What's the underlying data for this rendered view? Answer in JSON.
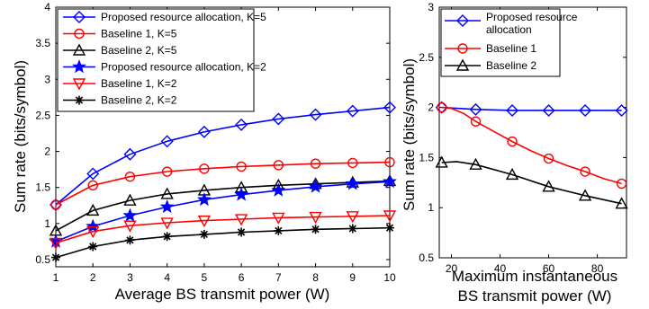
{
  "chart_data": [
    {
      "type": "line",
      "xlabel": "Average BS transmit power (W)",
      "ylabel": "Sum rate (bits/symbol)",
      "xlim": [
        1,
        10
      ],
      "ylim": [
        0.4,
        4
      ],
      "x_ticks": [
        "1",
        "2",
        "3",
        "4",
        "5",
        "6",
        "7",
        "8",
        "9",
        "10"
      ],
      "y_ticks": [
        "0.5",
        "1",
        "1.5",
        "2",
        "2.5",
        "3",
        "3.5",
        "4"
      ],
      "grid": false,
      "legend_position": "top-left",
      "x": [
        1,
        2,
        3,
        4,
        5,
        6,
        7,
        8,
        9,
        10
      ],
      "series": [
        {
          "name": "Proposed resource allocation, K=5",
          "color": "#0000ff",
          "marker": "diamond",
          "values": [
            1.26,
            1.69,
            1.96,
            2.14,
            2.27,
            2.37,
            2.45,
            2.51,
            2.56,
            2.61
          ]
        },
        {
          "name": "Baseline 1, K=5",
          "color": "#ff0000",
          "marker": "circle",
          "values": [
            1.26,
            1.53,
            1.65,
            1.72,
            1.76,
            1.79,
            1.81,
            1.83,
            1.84,
            1.85
          ]
        },
        {
          "name": "Baseline 2, K=5",
          "color": "#000000",
          "marker": "triangle-up",
          "values": [
            0.9,
            1.18,
            1.32,
            1.41,
            1.46,
            1.5,
            1.53,
            1.55,
            1.57,
            1.59
          ]
        },
        {
          "name": "Proposed resource allocation, K=2",
          "color": "#0000ff",
          "marker": "star",
          "values": [
            0.75,
            0.96,
            1.11,
            1.23,
            1.33,
            1.4,
            1.46,
            1.51,
            1.55,
            1.58
          ]
        },
        {
          "name": "Baseline 1, K=2",
          "color": "#ff0000",
          "marker": "triangle-down",
          "values": [
            0.73,
            0.89,
            0.97,
            1.01,
            1.04,
            1.06,
            1.08,
            1.09,
            1.1,
            1.11
          ]
        },
        {
          "name": "Baseline 2, K=2",
          "color": "#000000",
          "marker": "asterisk",
          "values": [
            0.53,
            0.68,
            0.77,
            0.82,
            0.85,
            0.88,
            0.9,
            0.92,
            0.93,
            0.94
          ]
        }
      ]
    },
    {
      "type": "line",
      "xlabel": "Maximum instantaneous BS transmit power (W)",
      "ylabel": "Sum rate (bits/symbol)",
      "xlim": [
        15,
        92
      ],
      "ylim": [
        0.5,
        3
      ],
      "x_ticks": [
        "20",
        "40",
        "60",
        "80"
      ],
      "y_ticks": [
        "0.5",
        "1",
        "1.5",
        "2",
        "2.5",
        "3"
      ],
      "grid": false,
      "legend_position": "top-left",
      "series": [
        {
          "name": "Proposed resource allocation",
          "color": "#0000ff",
          "marker": "diamond",
          "x": [
            16,
            30,
            45,
            60,
            75,
            90
          ],
          "values": [
            2.0,
            1.98,
            1.97,
            1.97,
            1.97,
            1.97
          ]
        },
        {
          "name": "Baseline 1",
          "color": "#ff0000",
          "marker": "circle",
          "x": [
            16,
            20,
            25,
            30,
            37.5,
            45,
            52.5,
            60,
            67.5,
            75,
            82.5,
            90
          ],
          "values": [
            2.0,
            1.99,
            1.94,
            1.86,
            1.76,
            1.66,
            1.57,
            1.49,
            1.42,
            1.36,
            1.29,
            1.24
          ]
        },
        {
          "name": "Baseline 2",
          "color": "#000000",
          "marker": "triangle-up",
          "x": [
            16,
            22,
            30,
            45,
            60,
            75,
            90
          ],
          "values": [
            1.45,
            1.46,
            1.43,
            1.33,
            1.21,
            1.12,
            1.04
          ]
        }
      ]
    }
  ],
  "left_chart": {
    "xlabel": "Average BS transmit power (W)",
    "ylabel": "Sum rate (bits/symbol)",
    "legend": [
      "Proposed resource allocation, K=5",
      "Baseline 1, K=5",
      "Baseline 2, K=5",
      "Proposed resource allocation, K=2",
      "Baseline 1, K=2",
      "Baseline 2, K=2"
    ]
  },
  "right_chart": {
    "xlabel_line1": "Maximum instantaneous",
    "xlabel_line2": "BS transmit power (W)",
    "ylabel": "Sum rate (bits/symbol)",
    "legend_line1": "Proposed resource",
    "legend_line2": "allocation",
    "legend_b1": "Baseline 1",
    "legend_b2": "Baseline 2"
  }
}
